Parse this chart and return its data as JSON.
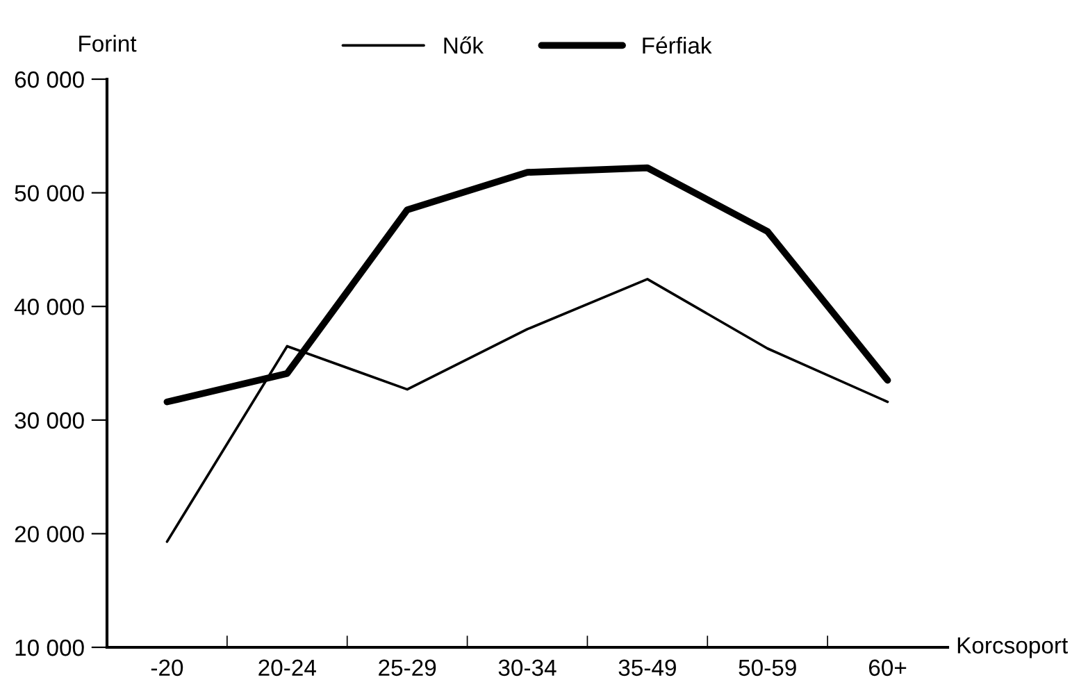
{
  "chart_data": {
    "type": "line",
    "ylabel": "Forint",
    "xlabel": "Korcsoport",
    "categories": [
      "-20",
      "20-24",
      "25-29",
      "30-34",
      "35-49",
      "50-59",
      "60+"
    ],
    "series": [
      {
        "name": "Nők",
        "color": "#000000",
        "values": [
          19300,
          36500,
          32700,
          38000,
          42400,
          36300,
          31600
        ]
      },
      {
        "name": "Férfiak",
        "color": "#000000",
        "values": [
          31600,
          34100,
          48500,
          51800,
          52200,
          46600,
          33500
        ]
      }
    ],
    "ylim": [
      10000,
      60000
    ],
    "yticks": [
      {
        "value": 10000,
        "label": "10 000"
      },
      {
        "value": 20000,
        "label": "20 000"
      },
      {
        "value": 30000,
        "label": "30 000"
      },
      {
        "value": 40000,
        "label": "40 000"
      },
      {
        "value": 50000,
        "label": "50 000"
      },
      {
        "value": 60000,
        "label": "60 000"
      }
    ],
    "grid": false,
    "legend": "top",
    "marker": "none",
    "line_style": "solid"
  }
}
